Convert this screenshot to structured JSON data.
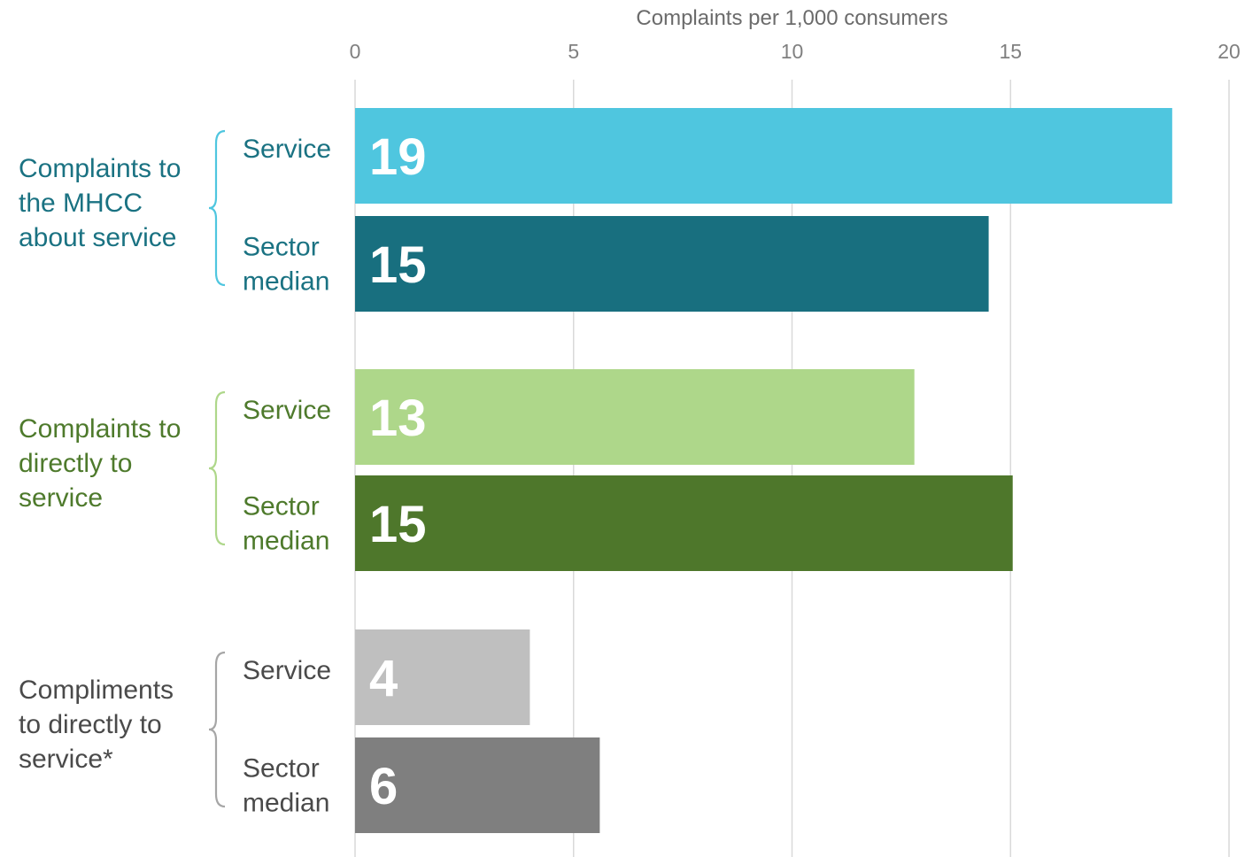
{
  "chart_data": {
    "type": "bar",
    "orientation": "horizontal",
    "xlabel": "Complaints per 1,000 consumers",
    "xlim": [
      0,
      20
    ],
    "xticks": [
      0,
      5,
      10,
      15,
      20
    ],
    "xtick_labels": [
      "0",
      "5",
      "10",
      "15",
      "20"
    ],
    "grid": true,
    "groups": [
      {
        "label_lines": [
          "Complaints to",
          "the MHCC",
          "about service"
        ],
        "color": "#1a7282",
        "brace_color": "#4fc6df",
        "bars": [
          {
            "label_lines": [
              "Service"
            ],
            "value": 18.7,
            "value_label": "19",
            "color": "#4fc6df"
          },
          {
            "label_lines": [
              "Sector",
              "median"
            ],
            "value": 14.5,
            "value_label": "15",
            "color": "#186f7f"
          }
        ]
      },
      {
        "label_lines": [
          "Complaints to",
          "directly to",
          "service"
        ],
        "color": "#4e7a2c",
        "brace_color": "#aed78a",
        "bars": [
          {
            "label_lines": [
              "Service"
            ],
            "value": 12.8,
            "value_label": "13",
            "color": "#aed78a"
          },
          {
            "label_lines": [
              "Sector",
              "median"
            ],
            "value": 15.05,
            "value_label": "15",
            "color": "#4e772b"
          }
        ]
      },
      {
        "label_lines": [
          "Compliments",
          "to directly to",
          "service*"
        ],
        "color": "#4a4a4a",
        "brace_color": "#a6a6a6",
        "bars": [
          {
            "label_lines": [
              "Service"
            ],
            "value": 4.0,
            "value_label": "4",
            "color": "#bfbfbf"
          },
          {
            "label_lines": [
              "Sector",
              "median"
            ],
            "value": 5.6,
            "value_label": "6",
            "color": "#7f7f7f"
          }
        ]
      }
    ]
  }
}
